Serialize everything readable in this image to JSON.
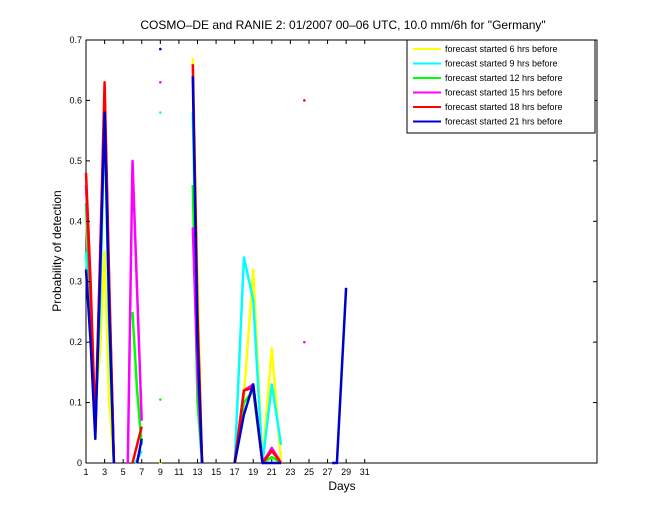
{
  "chart_data": {
    "type": "line",
    "title": "COSMO–DE and RANIE 2: 01/2007 00–06 UTC, 10.0 mm/6h for \"Germany\"",
    "xlabel": "Days",
    "ylabel": "Probability of detection",
    "xlim": [
      1,
      56
    ],
    "ylim": [
      0,
      0.7
    ],
    "xticks": [
      1,
      3,
      5,
      7,
      9,
      11,
      13,
      15,
      17,
      19,
      21,
      23,
      25,
      27,
      29,
      31
    ],
    "yticks": [
      0,
      0.1,
      0.2,
      0.3,
      0.4,
      0.5,
      0.6,
      0.7
    ],
    "legend_position": "top-right",
    "grid": false,
    "series": [
      {
        "name": "forecast started 6 hrs before",
        "color": "#ffff00",
        "segments": [
          [
            [
              1,
              0.43
            ],
            [
              1.4,
              0.24
            ],
            [
              2,
              0.1
            ],
            [
              2.5,
              0.18
            ],
            [
              3,
              0.35
            ],
            [
              3.5,
              0.1
            ],
            [
              4,
              0.0
            ]
          ],
          [
            [
              6.3,
              0.0
            ],
            [
              7,
              0.02
            ]
          ],
          [
            [
              12.5,
              0.67
            ],
            [
              13,
              0.3
            ],
            [
              13.5,
              0.0
            ]
          ],
          [
            [
              17,
              0.0
            ],
            [
              18,
              0.11
            ],
            [
              19,
              0.32
            ],
            [
              20,
              0.0
            ],
            [
              21,
              0.19
            ],
            [
              22,
              0.0
            ]
          ]
        ],
        "points": [
          [
            9,
            0.0
          ]
        ]
      },
      {
        "name": "forecast started 9 hrs before",
        "color": "#00ffff",
        "segments": [
          [
            [
              1,
              0.35
            ],
            [
              1.5,
              0.22
            ],
            [
              2,
              0.07
            ],
            [
              2.5,
              0.25
            ],
            [
              3,
              0.58
            ],
            [
              3.5,
              0.22
            ],
            [
              4,
              0.0
            ]
          ],
          [
            [
              6.3,
              0.0
            ],
            [
              7,
              0.02
            ]
          ],
          [
            [
              12.5,
              0.58
            ],
            [
              13,
              0.2
            ],
            [
              13.5,
              0.0
            ]
          ],
          [
            [
              17,
              0.0
            ],
            [
              18,
              0.34
            ],
            [
              19,
              0.27
            ],
            [
              20,
              0.0
            ],
            [
              21,
              0.13
            ],
            [
              22,
              0.03
            ]
          ]
        ],
        "points": [
          [
            9,
            0.58
          ]
        ]
      },
      {
        "name": "forecast started 12 hrs before",
        "color": "#00ff00",
        "segments": [
          [
            [
              1,
              0.43
            ],
            [
              1.5,
              0.25
            ],
            [
              2,
              0.06
            ],
            [
              2.5,
              0.3
            ],
            [
              3,
              0.6
            ],
            [
              3.5,
              0.3
            ],
            [
              4,
              0.0
            ]
          ],
          [
            [
              6,
              0.25
            ],
            [
              6.5,
              0.12
            ],
            [
              7,
              0.03
            ]
          ],
          [
            [
              12.5,
              0.46
            ],
            [
              13,
              0.1
            ],
            [
              13.5,
              0.0
            ]
          ],
          [
            [
              17,
              0.0
            ],
            [
              18,
              0.1
            ],
            [
              19,
              0.12
            ],
            [
              20,
              0.0
            ],
            [
              21,
              0.01
            ],
            [
              22,
              0.0
            ]
          ]
        ],
        "points": [
          [
            9,
            0.105
          ]
        ]
      },
      {
        "name": "forecast started 15 hrs before",
        "color": "#ff00ff",
        "segments": [
          [
            [
              1,
              0.46
            ],
            [
              1.5,
              0.28
            ],
            [
              2,
              0.05
            ],
            [
              2.5,
              0.32
            ],
            [
              3,
              0.6
            ],
            [
              3.5,
              0.28
            ],
            [
              4,
              0.0
            ]
          ],
          [
            [
              5.5,
              0.0
            ],
            [
              6,
              0.5
            ],
            [
              7,
              0.07
            ]
          ],
          [
            [
              12.5,
              0.39
            ],
            [
              13,
              0.15
            ],
            [
              13.5,
              0.0
            ]
          ],
          [
            [
              17,
              0.0
            ],
            [
              18,
              0.12
            ],
            [
              19,
              0.13
            ],
            [
              20,
              0.0
            ],
            [
              21,
              0.025
            ],
            [
              22,
              0.0
            ]
          ]
        ],
        "points": [
          [
            9,
            0.63
          ],
          [
            24.5,
            0.2
          ]
        ]
      },
      {
        "name": "forecast started 18 hrs before",
        "color": "#ff0000",
        "segments": [
          [
            [
              1,
              0.48
            ],
            [
              1.5,
              0.3
            ],
            [
              2,
              0.06
            ],
            [
              2.5,
              0.33
            ],
            [
              3,
              0.63
            ],
            [
              3.5,
              0.3
            ],
            [
              4,
              0.0
            ]
          ],
          [
            [
              6,
              0.0
            ],
            [
              7,
              0.06
            ]
          ],
          [
            [
              12.5,
              0.66
            ],
            [
              13,
              0.25
            ],
            [
              13.5,
              0.0
            ]
          ],
          [
            [
              17,
              0.0
            ],
            [
              18,
              0.12
            ],
            [
              19,
              0.125
            ],
            [
              20,
              0.0
            ],
            [
              21,
              0.02
            ],
            [
              22,
              0.0
            ]
          ]
        ],
        "points": [
          [
            24.5,
            0.6
          ]
        ]
      },
      {
        "name": "forecast started 21 hrs before",
        "color": "#0000cc",
        "segments": [
          [
            [
              1,
              0.32
            ],
            [
              1.5,
              0.2
            ],
            [
              2,
              0.04
            ],
            [
              2.5,
              0.3
            ],
            [
              3,
              0.58
            ],
            [
              3.5,
              0.25
            ],
            [
              4,
              0.0
            ]
          ],
          [
            [
              6.5,
              0.0
            ],
            [
              7,
              0.04
            ]
          ],
          [
            [
              12.5,
              0.64
            ],
            [
              13,
              0.2
            ],
            [
              13.5,
              0.0
            ]
          ],
          [
            [
              17,
              0.0
            ],
            [
              18,
              0.08
            ],
            [
              19,
              0.13
            ],
            [
              20,
              0.0
            ],
            [
              21,
              0.0
            ],
            [
              22,
              0.0
            ]
          ],
          [
            [
              27.5,
              0.0
            ],
            [
              28,
              0.0
            ],
            [
              29,
              0.29
            ]
          ]
        ],
        "points": [
          [
            9,
            0.685
          ]
        ]
      }
    ]
  }
}
